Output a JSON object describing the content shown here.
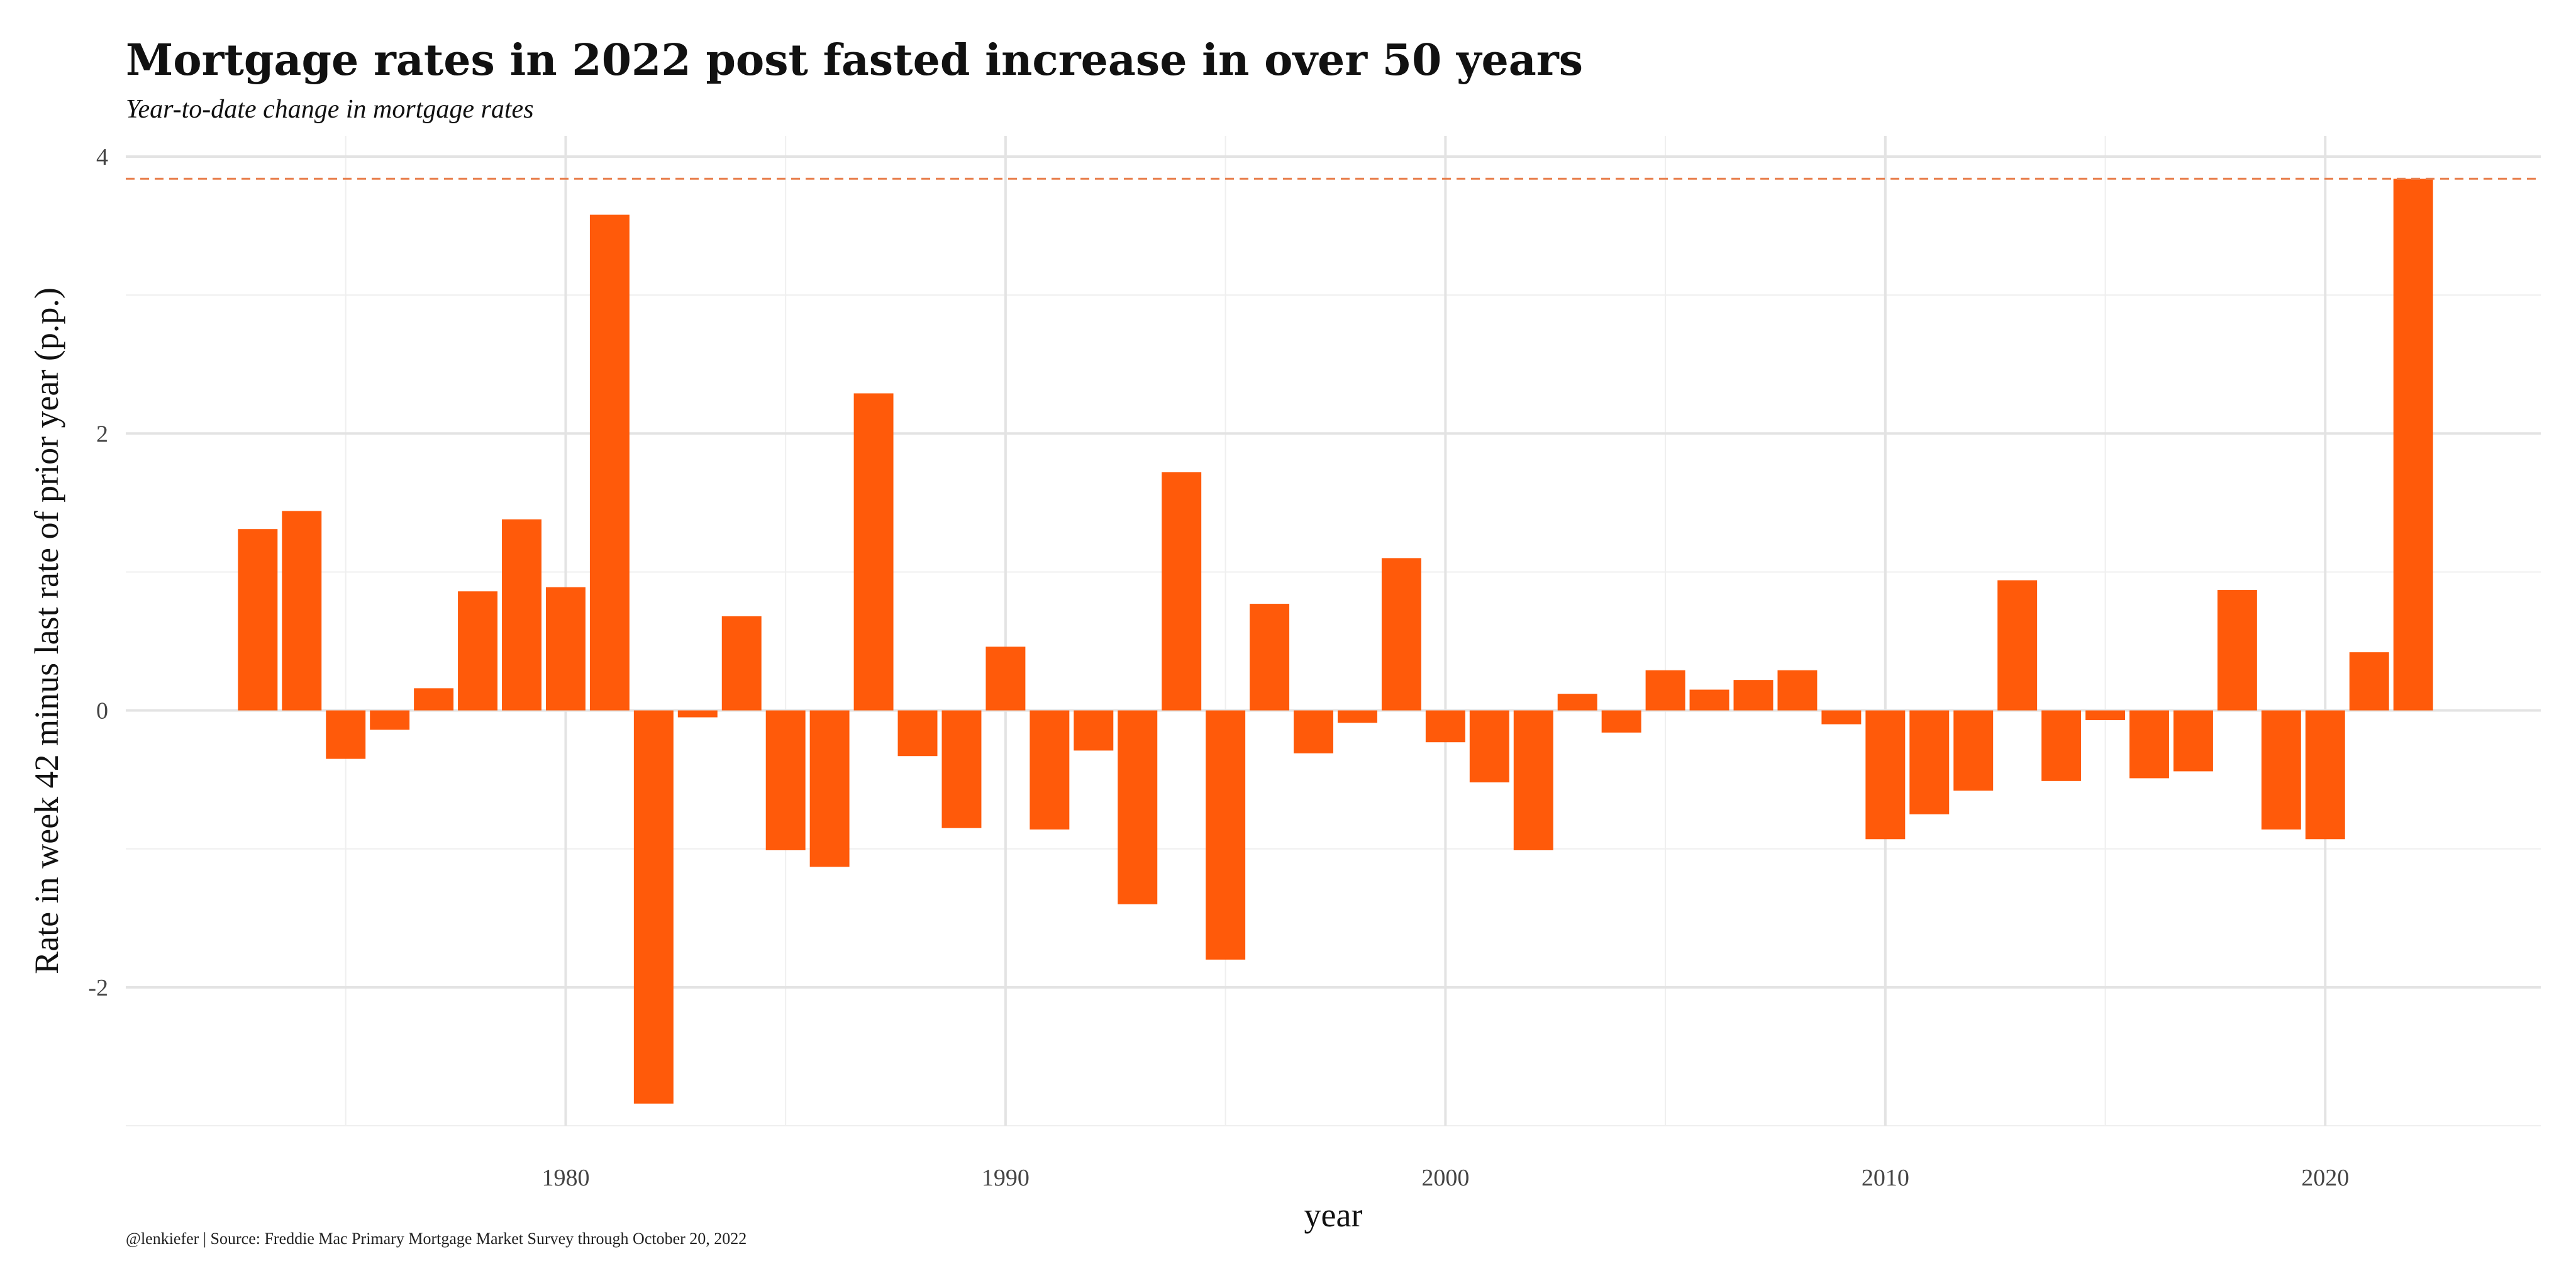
{
  "chart_data": {
    "type": "bar",
    "title": "Mortgage rates in 2022 post fasted increase in over 50 years",
    "subtitle": "Year-to-date change in mortgage rates",
    "xlabel": "year",
    "ylabel": "Rate in week 42 minus last rate of prior year (p.p.)",
    "caption": "@lenkiefer | Source: Freddie Mac Primary Mortgage Market Survey through October 20, 2022",
    "xlim": [
      1970.0,
      2024.9
    ],
    "ylim": [
      -3.0,
      4.15
    ],
    "x_ticks": [
      1980,
      1990,
      2000,
      2010,
      2020
    ],
    "y_ticks": [
      -2,
      0,
      2,
      4
    ],
    "grid": true,
    "reference_line": {
      "value": 3.84,
      "style": "dashed",
      "color": "#E8804F"
    },
    "bar_color": "#FF5A0A",
    "categories": [
      1973,
      1974,
      1975,
      1976,
      1977,
      1978,
      1979,
      1980,
      1981,
      1982,
      1983,
      1984,
      1985,
      1986,
      1987,
      1988,
      1989,
      1990,
      1991,
      1992,
      1993,
      1994,
      1995,
      1996,
      1997,
      1998,
      1999,
      2000,
      2001,
      2002,
      2003,
      2004,
      2005,
      2006,
      2007,
      2008,
      2009,
      2010,
      2011,
      2012,
      2013,
      2014,
      2015,
      2016,
      2017,
      2018,
      2019,
      2020,
      2021,
      2022
    ],
    "values": [
      1.31,
      1.44,
      -0.35,
      -0.14,
      0.16,
      0.86,
      1.38,
      0.89,
      3.58,
      -2.84,
      -0.05,
      0.68,
      -1.01,
      -1.13,
      2.29,
      -0.33,
      -0.85,
      0.46,
      -0.86,
      -0.29,
      -1.4,
      1.72,
      -1.8,
      0.77,
      -0.31,
      -0.09,
      1.1,
      -0.23,
      -0.52,
      -1.01,
      0.12,
      -0.16,
      0.29,
      0.15,
      0.22,
      0.29,
      -0.1,
      -0.93,
      -0.75,
      -0.58,
      0.94,
      -0.51,
      -0.07,
      -0.49,
      -0.44,
      0.87,
      -0.86,
      -0.93,
      0.42,
      3.84
    ]
  }
}
